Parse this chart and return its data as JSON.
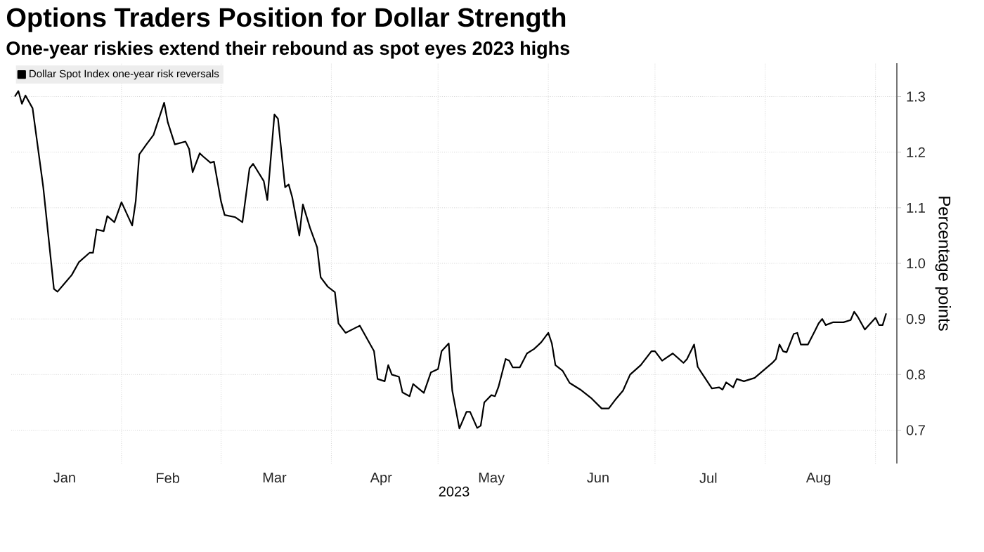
{
  "chart_data": {
    "type": "line",
    "title": "Options Traders Position for Dollar Strength",
    "subtitle": "One-year riskies extend their rebound as spot eyes 2023 highs",
    "xlabel": "2023",
    "ylabel": "Percentage points",
    "legend": "top left",
    "grid": true,
    "xlim": [
      "2023-01-01",
      "2023-09-07"
    ],
    "xticks": [
      {
        "value": "2023-01-16",
        "label": "Jan"
      },
      {
        "value": "2023-02-01",
        "label": null
      },
      {
        "value": "2023-02-14",
        "label": "Feb"
      },
      {
        "value": "2023-03-01",
        "label": null
      },
      {
        "value": "2023-03-16",
        "label": "Mar"
      },
      {
        "value": "2023-04-01",
        "label": null
      },
      {
        "value": "2023-04-15",
        "label": "Apr"
      },
      {
        "value": "2023-05-01",
        "label": null
      },
      {
        "value": "2023-05-16",
        "label": "May"
      },
      {
        "value": "2023-06-01",
        "label": null
      },
      {
        "value": "2023-06-15",
        "label": "Jun"
      },
      {
        "value": "2023-07-01",
        "label": null
      },
      {
        "value": "2023-07-16",
        "label": "Jul"
      },
      {
        "value": "2023-08-01",
        "label": null
      },
      {
        "value": "2023-08-16",
        "label": "Aug"
      },
      {
        "value": "2023-09-01",
        "label": null
      }
    ],
    "ylim": [
      0.64,
      1.36
    ],
    "yticks": [
      0.7,
      0.8,
      0.9,
      {
        "value": 1.0,
        "label": "1.0"
      },
      1.1,
      1.2,
      1.3
    ],
    "series": [
      {
        "name": "Dollar Spot Index one-year risk reversals",
        "color": "#000000",
        "x": [
          "2023-01-02",
          "2023-01-03",
          "2023-01-04",
          "2023-01-05",
          "2023-01-07",
          "2023-01-10",
          "2023-01-13",
          "2023-01-14",
          "2023-01-16",
          "2023-01-18",
          "2023-01-20",
          "2023-01-23",
          "2023-01-24",
          "2023-01-25",
          "2023-01-27",
          "2023-01-28",
          "2023-01-30",
          "2023-02-01",
          "2023-02-04",
          "2023-02-05",
          "2023-02-06",
          "2023-02-08",
          "2023-02-10",
          "2023-02-13",
          "2023-02-14",
          "2023-02-16",
          "2023-02-19",
          "2023-02-20",
          "2023-02-21",
          "2023-02-23",
          "2023-02-24",
          "2023-02-26",
          "2023-02-27",
          "2023-03-01",
          "2023-03-02",
          "2023-03-05",
          "2023-03-07",
          "2023-03-09",
          "2023-03-10",
          "2023-03-13",
          "2023-03-14",
          "2023-03-16",
          "2023-03-17",
          "2023-03-19",
          "2023-03-20",
          "2023-03-21",
          "2023-03-23",
          "2023-03-24",
          "2023-03-26",
          "2023-03-28",
          "2023-03-29",
          "2023-03-31",
          "2023-04-02",
          "2023-04-03",
          "2023-04-05",
          "2023-04-09",
          "2023-04-13",
          "2023-04-14",
          "2023-04-16",
          "2023-04-17",
          "2023-04-18",
          "2023-04-20",
          "2023-04-21",
          "2023-04-23",
          "2023-04-24",
          "2023-04-27",
          "2023-04-29",
          "2023-05-01",
          "2023-05-02",
          "2023-05-04",
          "2023-05-05",
          "2023-05-07",
          "2023-05-09",
          "2023-05-10",
          "2023-05-12",
          "2023-05-13",
          "2023-05-14",
          "2023-05-16",
          "2023-05-17",
          "2023-05-18",
          "2023-05-20",
          "2023-05-21",
          "2023-05-22",
          "2023-05-24",
          "2023-05-26",
          "2023-05-28",
          "2023-05-30",
          "2023-06-01",
          "2023-06-02",
          "2023-06-03",
          "2023-06-05",
          "2023-06-07",
          "2023-06-10",
          "2023-06-13",
          "2023-06-16",
          "2023-06-18",
          "2023-06-20",
          "2023-06-22",
          "2023-06-24",
          "2023-06-27",
          "2023-06-30",
          "2023-07-01",
          "2023-07-03",
          "2023-07-06",
          "2023-07-09",
          "2023-07-10",
          "2023-07-12",
          "2023-07-13",
          "2023-07-14",
          "2023-07-17",
          "2023-07-19",
          "2023-07-20",
          "2023-07-21",
          "2023-07-23",
          "2023-07-24",
          "2023-07-26",
          "2023-07-29",
          "2023-08-03",
          "2023-08-04",
          "2023-08-05",
          "2023-08-06",
          "2023-08-07",
          "2023-08-09",
          "2023-08-10",
          "2023-08-11",
          "2023-08-13",
          "2023-08-15",
          "2023-08-16",
          "2023-08-17",
          "2023-08-18",
          "2023-08-20",
          "2023-08-23",
          "2023-08-25",
          "2023-08-26",
          "2023-08-27",
          "2023-08-29",
          "2023-09-01",
          "2023-09-02",
          "2023-09-03",
          "2023-09-04"
        ],
        "values": [
          1.3,
          1.31,
          1.287,
          1.302,
          1.279,
          1.137,
          0.954,
          0.949,
          0.964,
          0.979,
          1.002,
          1.019,
          1.019,
          1.061,
          1.058,
          1.085,
          1.074,
          1.11,
          1.068,
          1.112,
          1.196,
          1.214,
          1.231,
          1.289,
          1.254,
          1.214,
          1.219,
          1.206,
          1.164,
          1.198,
          1.192,
          1.181,
          1.183,
          1.111,
          1.087,
          1.083,
          1.074,
          1.171,
          1.179,
          1.148,
          1.114,
          1.268,
          1.26,
          1.137,
          1.142,
          1.119,
          1.05,
          1.106,
          1.064,
          1.029,
          0.975,
          0.958,
          0.948,
          0.892,
          0.875,
          0.888,
          0.842,
          0.792,
          0.788,
          0.817,
          0.8,
          0.796,
          0.768,
          0.761,
          0.783,
          0.767,
          0.804,
          0.81,
          0.842,
          0.856,
          0.771,
          0.703,
          0.733,
          0.733,
          0.704,
          0.708,
          0.75,
          0.763,
          0.761,
          0.778,
          0.828,
          0.825,
          0.813,
          0.813,
          0.838,
          0.846,
          0.858,
          0.875,
          0.856,
          0.817,
          0.807,
          0.785,
          0.773,
          0.758,
          0.739,
          0.739,
          0.756,
          0.771,
          0.8,
          0.817,
          0.842,
          0.842,
          0.825,
          0.838,
          0.821,
          0.828,
          0.854,
          0.814,
          0.804,
          0.775,
          0.777,
          0.773,
          0.786,
          0.777,
          0.792,
          0.788,
          0.794,
          0.821,
          0.828,
          0.854,
          0.842,
          0.84,
          0.873,
          0.875,
          0.854,
          0.854,
          0.879,
          0.892,
          0.9,
          0.889,
          0.894,
          0.894,
          0.898,
          0.913,
          0.904,
          0.881,
          0.902,
          0.889,
          0.889,
          0.91
        ]
      }
    ]
  }
}
